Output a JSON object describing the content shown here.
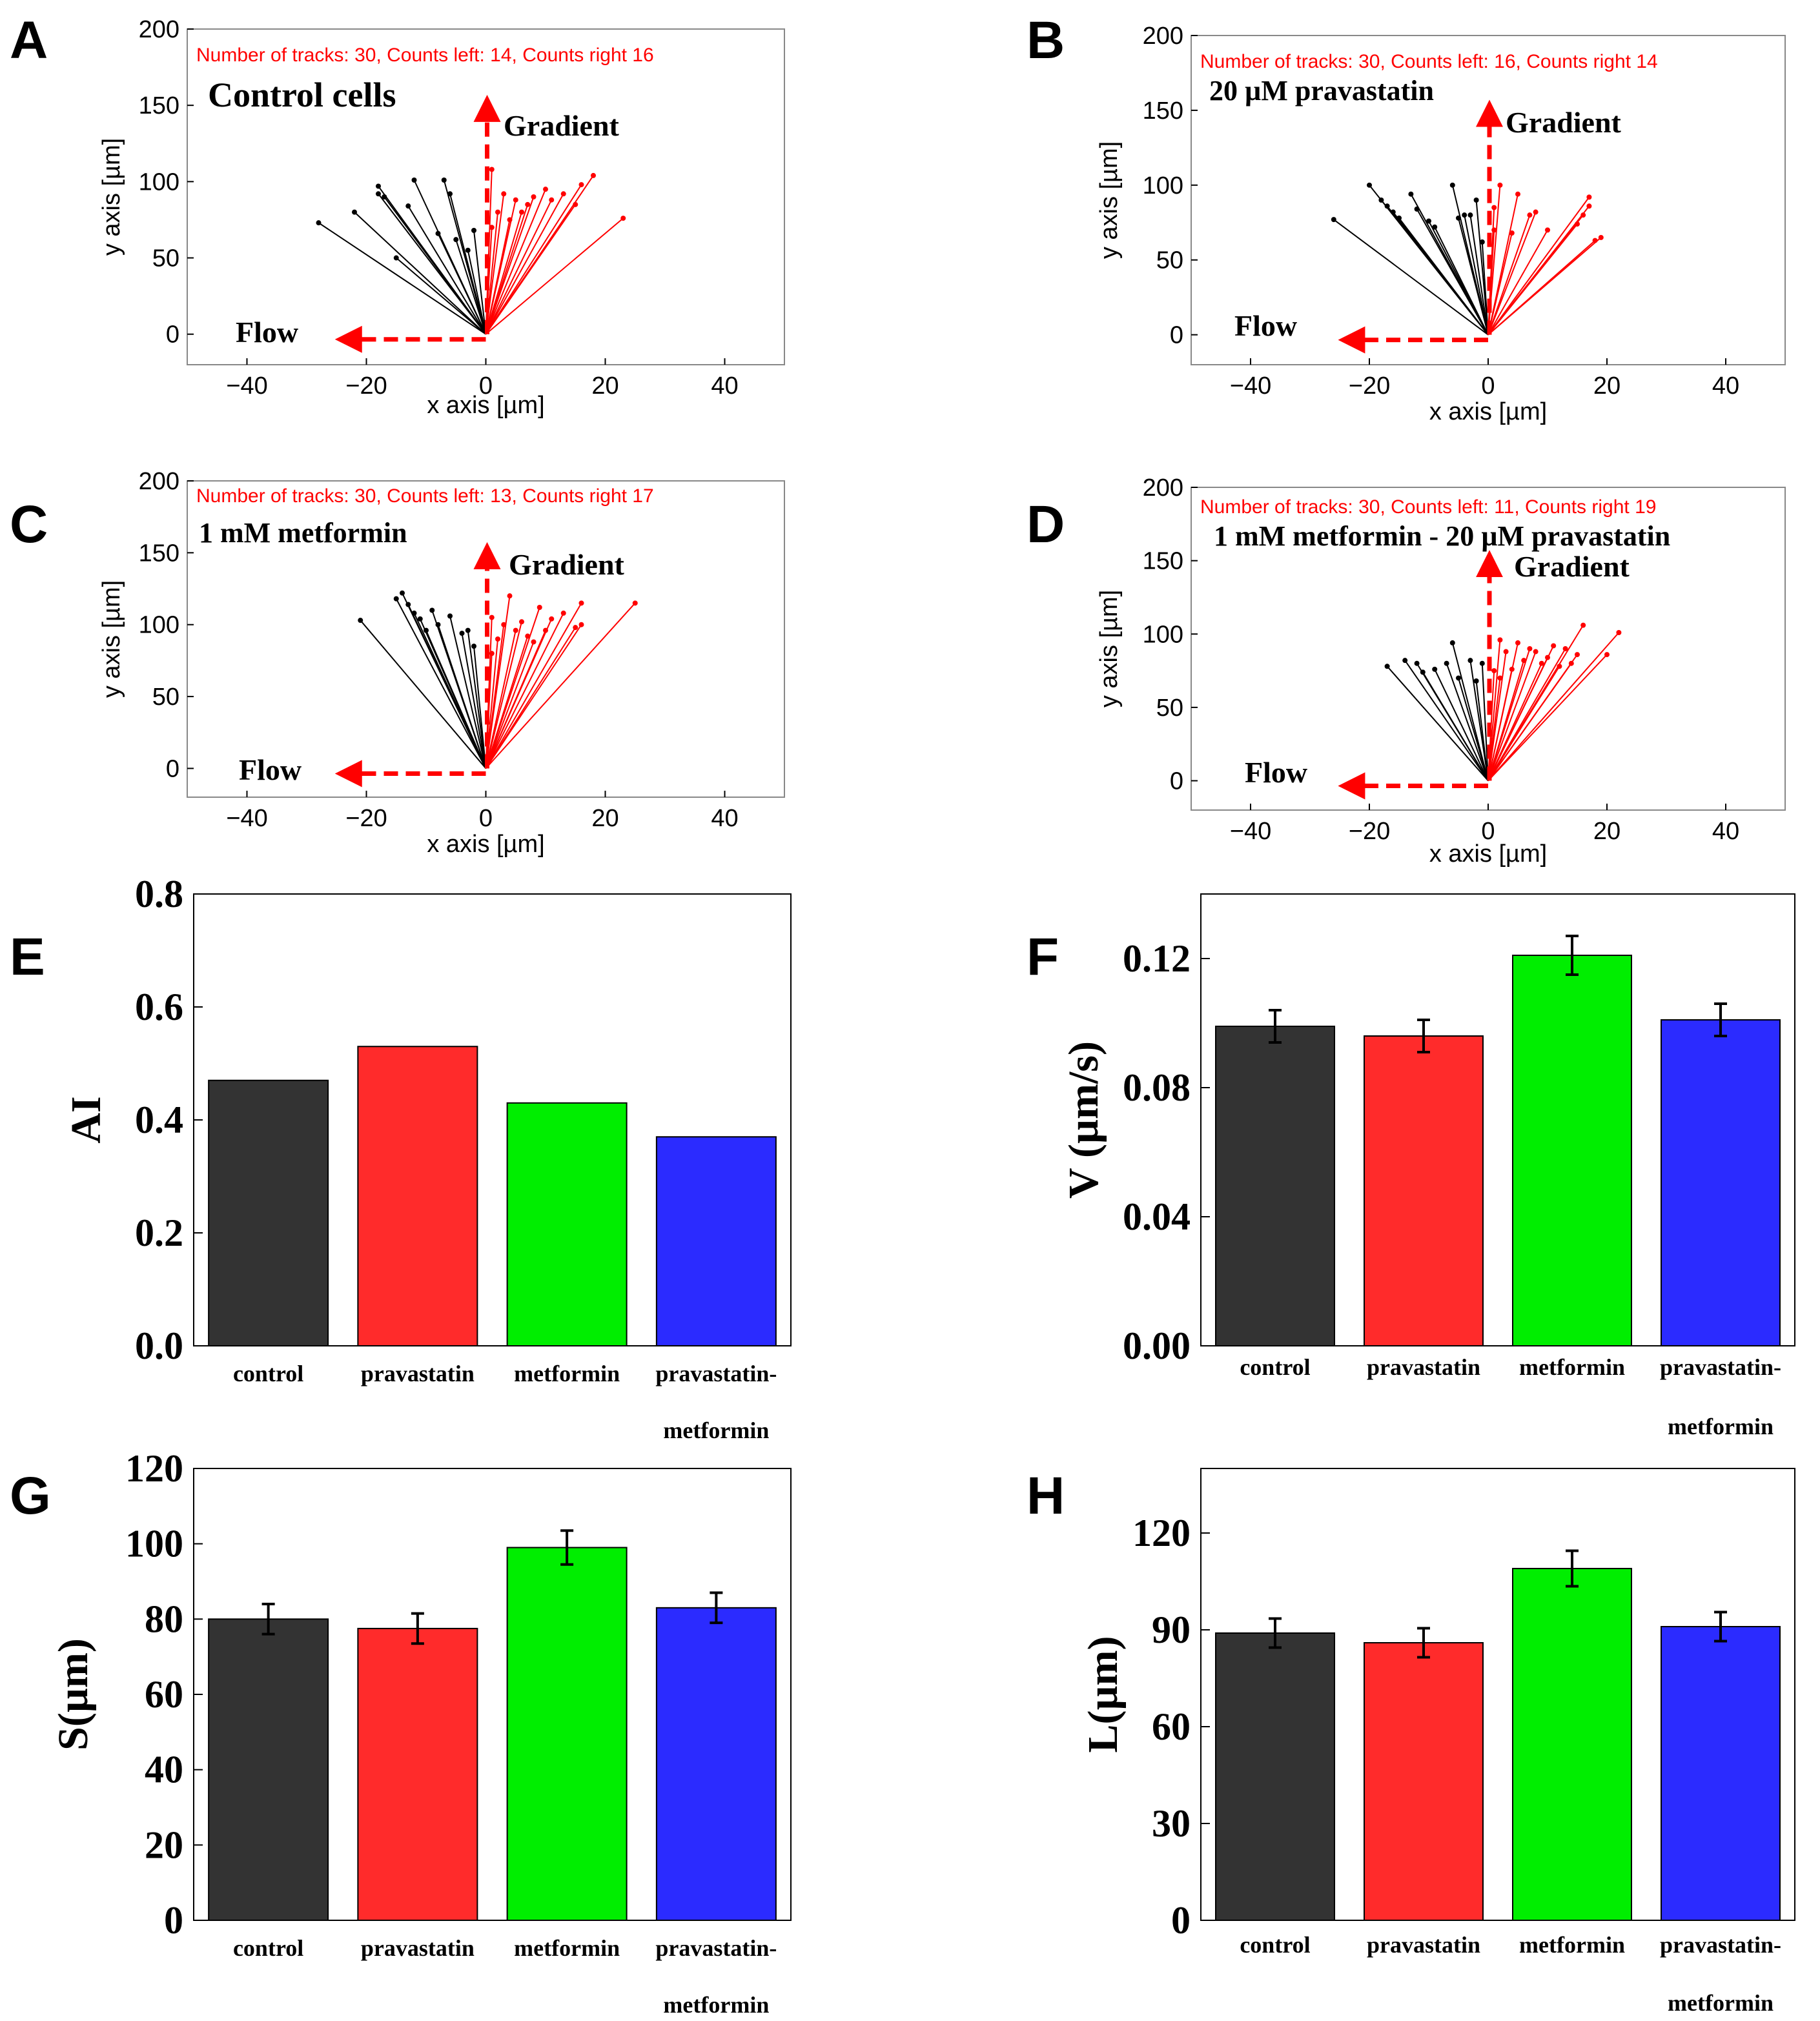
{
  "colors": {
    "black_tracks": "#000000",
    "red_tracks": "#ff0000",
    "bar_control": "#333333",
    "bar_pravastatin": "#ff2b2b",
    "bar_metformin": "#00ee00",
    "bar_combo": "#2b2bff"
  },
  "chart_data": [
    {
      "panel": "A",
      "type": "scatter",
      "annotation": "Number of tracks: 30, Counts left: 14, Counts right 16",
      "condition": "Control cells",
      "gradient_label": "Gradient",
      "flow_label": "Flow",
      "xlabel": "x axis [µm]",
      "ylabel": "y axis [µm]",
      "xlim": [
        -50,
        50
      ],
      "ylim": [
        -20,
        200
      ],
      "xticks": [
        "−40",
        "−20",
        "0",
        "20",
        "40"
      ],
      "yticks": [
        "0",
        "50",
        "100",
        "150",
        "200"
      ],
      "xtick_values": [
        -40,
        -20,
        0,
        20,
        40
      ],
      "ytick_values": [
        0,
        50,
        100,
        150,
        200
      ],
      "left_tracks": [
        [
          -28,
          73
        ],
        [
          -22,
          80
        ],
        [
          -18,
          97
        ],
        [
          -18,
          92
        ],
        [
          -17,
          90
        ],
        [
          -12,
          101
        ],
        [
          -13,
          84
        ],
        [
          -8,
          66
        ],
        [
          -7,
          101
        ],
        [
          -6,
          92
        ],
        [
          -5,
          62
        ],
        [
          -15,
          50
        ],
        [
          -2,
          68
        ],
        [
          -3,
          55
        ]
      ],
      "right_tracks": [
        [
          23,
          76
        ],
        [
          18,
          104
        ],
        [
          16,
          98
        ],
        [
          15,
          85
        ],
        [
          13,
          92
        ],
        [
          11,
          88
        ],
        [
          10,
          95
        ],
        [
          8,
          90
        ],
        [
          7,
          85
        ],
        [
          6,
          80
        ],
        [
          5,
          88
        ],
        [
          4,
          75
        ],
        [
          3,
          92
        ],
        [
          2,
          80
        ],
        [
          1,
          108
        ],
        [
          1,
          70
        ]
      ]
    },
    {
      "panel": "B",
      "type": "scatter",
      "annotation": "Number of tracks: 30, Counts left: 16, Counts right 14",
      "condition": "20 µM pravastatin",
      "gradient_label": "Gradient",
      "flow_label": "Flow",
      "xlabel": "x axis [µm]",
      "ylabel": "y axis [µm]",
      "xlim": [
        -50,
        50
      ],
      "ylim": [
        -20,
        200
      ],
      "xticks": [
        "−40",
        "−20",
        "0",
        "20",
        "40"
      ],
      "yticks": [
        "0",
        "50",
        "100",
        "150",
        "200"
      ],
      "xtick_values": [
        -40,
        -20,
        0,
        20,
        40
      ],
      "ytick_values": [
        0,
        50,
        100,
        150,
        200
      ],
      "left_tracks": [
        [
          -26,
          77
        ],
        [
          -20,
          100
        ],
        [
          -18,
          90
        ],
        [
          -17,
          86
        ],
        [
          -16,
          82
        ],
        [
          -15,
          78
        ],
        [
          -13,
          94
        ],
        [
          -12,
          84
        ],
        [
          -10,
          76
        ],
        [
          -9,
          72
        ],
        [
          -6,
          100
        ],
        [
          -5,
          78
        ],
        [
          -4,
          80
        ],
        [
          -3,
          80
        ],
        [
          -2,
          90
        ],
        [
          -1,
          62
        ]
      ],
      "right_tracks": [
        [
          19,
          65
        ],
        [
          18,
          63
        ],
        [
          17,
          92
        ],
        [
          17,
          86
        ],
        [
          16,
          80
        ],
        [
          15,
          74
        ],
        [
          10,
          70
        ],
        [
          8,
          82
        ],
        [
          7,
          80
        ],
        [
          5,
          94
        ],
        [
          4,
          68
        ],
        [
          2,
          100
        ],
        [
          1,
          70
        ],
        [
          1,
          85
        ]
      ]
    },
    {
      "panel": "C",
      "type": "scatter",
      "annotation": "Number of tracks: 30, Counts left: 13, Counts right 17",
      "condition": "1 mM metformin",
      "gradient_label": "Gradient",
      "flow_label": "Flow",
      "xlabel": "x axis [µm]",
      "ylabel": "y axis [µm]",
      "xlim": [
        -50,
        50
      ],
      "ylim": [
        -20,
        200
      ],
      "xticks": [
        "−40",
        "−20",
        "0",
        "20",
        "40"
      ],
      "yticks": [
        "0",
        "50",
        "100",
        "150",
        "200"
      ],
      "xtick_values": [
        -40,
        -20,
        0,
        20,
        40
      ],
      "ytick_values": [
        0,
        50,
        100,
        150,
        200
      ],
      "left_tracks": [
        [
          -21,
          103
        ],
        [
          -15,
          118
        ],
        [
          -14,
          122
        ],
        [
          -13,
          114
        ],
        [
          -12,
          108
        ],
        [
          -11,
          104
        ],
        [
          -10,
          96
        ],
        [
          -9,
          110
        ],
        [
          -8,
          100
        ],
        [
          -6,
          106
        ],
        [
          -4,
          94
        ],
        [
          -3,
          96
        ],
        [
          -2,
          85
        ]
      ],
      "right_tracks": [
        [
          25,
          115
        ],
        [
          16,
          115
        ],
        [
          16,
          100
        ],
        [
          15,
          98
        ],
        [
          13,
          108
        ],
        [
          11,
          104
        ],
        [
          10,
          96
        ],
        [
          9,
          112
        ],
        [
          8,
          88
        ],
        [
          7,
          92
        ],
        [
          6,
          102
        ],
        [
          5,
          96
        ],
        [
          4,
          120
        ],
        [
          3,
          100
        ],
        [
          2,
          90
        ],
        [
          1,
          105
        ],
        [
          1,
          80
        ]
      ]
    },
    {
      "panel": "D",
      "type": "scatter",
      "annotation": "Number of tracks: 30, Counts left: 11, Counts right 19",
      "condition": "1 mM metformin - 20 µM pravastatin",
      "gradient_label": "Gradient",
      "flow_label": "Flow",
      "xlabel": "x axis [µm]",
      "ylabel": "y axis [µm]",
      "xlim": [
        -50,
        50
      ],
      "ylim": [
        -20,
        200
      ],
      "xticks": [
        "−40",
        "−20",
        "0",
        "20",
        "40"
      ],
      "yticks": [
        "0",
        "50",
        "100",
        "150",
        "200"
      ],
      "xtick_values": [
        -40,
        -20,
        0,
        20,
        40
      ],
      "ytick_values": [
        0,
        50,
        100,
        150,
        200
      ],
      "left_tracks": [
        [
          -17,
          78
        ],
        [
          -14,
          82
        ],
        [
          -12,
          80
        ],
        [
          -11,
          74
        ],
        [
          -9,
          76
        ],
        [
          -7,
          80
        ],
        [
          -6,
          94
        ],
        [
          -5,
          70
        ],
        [
          -3,
          82
        ],
        [
          -2,
          68
        ],
        [
          -1,
          80
        ]
      ],
      "right_tracks": [
        [
          22,
          101
        ],
        [
          20,
          86
        ],
        [
          16,
          106
        ],
        [
          15,
          86
        ],
        [
          14,
          80
        ],
        [
          13,
          90
        ],
        [
          12,
          78
        ],
        [
          11,
          92
        ],
        [
          10,
          84
        ],
        [
          9,
          80
        ],
        [
          8,
          88
        ],
        [
          7,
          90
        ],
        [
          6,
          82
        ],
        [
          5,
          94
        ],
        [
          4,
          76
        ],
        [
          3,
          88
        ],
        [
          2,
          70
        ],
        [
          2,
          96
        ],
        [
          1,
          75
        ]
      ]
    },
    {
      "panel": "E",
      "type": "bar",
      "categories": [
        "control",
        "pravastatin",
        "metformin",
        "pravastatin-metformin"
      ],
      "category_lines": [
        [
          "control"
        ],
        [
          "pravastatin"
        ],
        [
          "metformin"
        ],
        [
          "pravastatin-",
          "metformin"
        ]
      ],
      "values": [
        0.47,
        0.53,
        0.43,
        0.37
      ],
      "errors": [
        0,
        0,
        0,
        0
      ],
      "ylabel": "AI",
      "ylim": [
        0,
        0.8
      ],
      "yticks": [
        "0.0",
        "0.2",
        "0.4",
        "0.6",
        "0.8"
      ],
      "ytick_values": [
        0,
        0.2,
        0.4,
        0.6,
        0.8
      ]
    },
    {
      "panel": "F",
      "type": "bar",
      "categories": [
        "control",
        "pravastatin",
        "metformin",
        "pravastatin-metformin"
      ],
      "category_lines": [
        [
          "control"
        ],
        [
          "pravastatin"
        ],
        [
          "metformin"
        ],
        [
          "pravastatin-",
          "metformin"
        ]
      ],
      "values": [
        0.099,
        0.096,
        0.121,
        0.101
      ],
      "errors": [
        0.005,
        0.005,
        0.006,
        0.005
      ],
      "ylabel": "V (µm/s)",
      "ylim": [
        0,
        0.14
      ],
      "yticks": [
        "0.00",
        "0.04",
        "0.08",
        "0.12"
      ],
      "ytick_values": [
        0,
        0.04,
        0.08,
        0.12
      ]
    },
    {
      "panel": "G",
      "type": "bar",
      "categories": [
        "control",
        "pravastatin",
        "metformin",
        "pravastatin-metformin"
      ],
      "category_lines": [
        [
          "control"
        ],
        [
          "pravastatin"
        ],
        [
          "metformin"
        ],
        [
          "pravastatin-",
          "metformin"
        ]
      ],
      "values": [
        80,
        77.5,
        99,
        83
      ],
      "errors": [
        4,
        4,
        4.5,
        4
      ],
      "ylabel": "S(µm)",
      "ylim": [
        0,
        120
      ],
      "yticks": [
        "0",
        "20",
        "40",
        "60",
        "80",
        "100",
        "120"
      ],
      "ytick_values": [
        0,
        20,
        40,
        60,
        80,
        100,
        120
      ]
    },
    {
      "panel": "H",
      "type": "bar",
      "categories": [
        "control",
        "pravastatin",
        "metformin",
        "pravastatin-metformin"
      ],
      "category_lines": [
        [
          "control"
        ],
        [
          "pravastatin"
        ],
        [
          "metformin"
        ],
        [
          "pravastatin-",
          "metformin"
        ]
      ],
      "values": [
        89,
        86,
        109,
        91
      ],
      "errors": [
        4.5,
        4.5,
        5.5,
        4.5
      ],
      "ylabel": "L(µm)",
      "ylim": [
        0,
        140
      ],
      "yticks": [
        "0",
        "30",
        "60",
        "90",
        "120"
      ],
      "ytick_values": [
        0,
        30,
        60,
        90,
        120
      ]
    }
  ]
}
